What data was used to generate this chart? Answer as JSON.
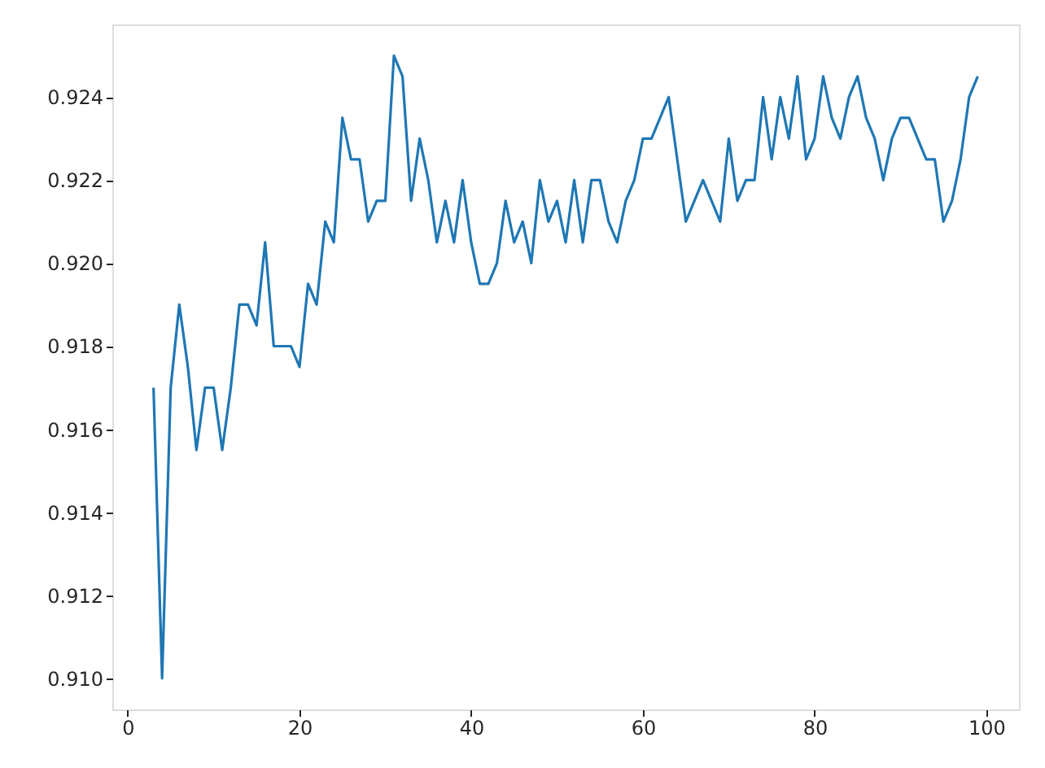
{
  "chart_data": {
    "type": "line",
    "x": [
      3,
      4,
      5,
      6,
      7,
      8,
      9,
      10,
      11,
      12,
      13,
      14,
      15,
      16,
      17,
      18,
      19,
      20,
      21,
      22,
      23,
      24,
      25,
      26,
      27,
      28,
      29,
      30,
      31,
      32,
      33,
      34,
      35,
      36,
      37,
      38,
      39,
      40,
      41,
      42,
      43,
      44,
      45,
      46,
      47,
      48,
      49,
      50,
      51,
      52,
      53,
      54,
      55,
      56,
      57,
      58,
      59,
      60,
      61,
      62,
      63,
      64,
      65,
      66,
      67,
      68,
      69,
      70,
      71,
      72,
      73,
      74,
      75,
      76,
      77,
      78,
      79,
      80,
      81,
      82,
      83,
      84,
      85,
      86,
      87,
      88,
      89,
      90,
      91,
      92,
      93,
      94,
      95,
      96,
      97,
      98,
      99
    ],
    "series": [
      {
        "color": "#1f77b4",
        "values": [
          0.917,
          0.91,
          0.917,
          0.919,
          0.9175,
          0.9155,
          0.917,
          0.917,
          0.9155,
          0.917,
          0.919,
          0.919,
          0.9185,
          0.9205,
          0.918,
          0.918,
          0.918,
          0.9175,
          0.9195,
          0.919,
          0.921,
          0.9205,
          0.9235,
          0.9225,
          0.9225,
          0.921,
          0.9215,
          0.9215,
          0.925,
          0.9245,
          0.9215,
          0.923,
          0.922,
          0.9205,
          0.9215,
          0.9205,
          0.922,
          0.9205,
          0.9195,
          0.9195,
          0.92,
          0.9215,
          0.9205,
          0.921,
          0.92,
          0.922,
          0.921,
          0.9215,
          0.9205,
          0.922,
          0.9205,
          0.922,
          0.922,
          0.921,
          0.9205,
          0.9215,
          0.922,
          0.923,
          0.923,
          0.9235,
          0.924,
          0.9225,
          0.921,
          0.9215,
          0.922,
          0.9215,
          0.921,
          0.923,
          0.9215,
          0.922,
          0.922,
          0.924,
          0.9225,
          0.924,
          0.923,
          0.9245,
          0.9225,
          0.923,
          0.9245,
          0.9235,
          0.923,
          0.924,
          0.9245,
          0.9235,
          0.923,
          0.922,
          0.923,
          0.9235,
          0.9235,
          0.923,
          0.9225,
          0.9225,
          0.921,
          0.9215,
          0.9225,
          0.924,
          0.9245
        ]
      }
    ],
    "xlim": [
      -1.8,
      103.8
    ],
    "ylim": [
      0.90925,
      0.92575
    ],
    "xticks": [
      0,
      20,
      40,
      60,
      80,
      100
    ],
    "yticks": [
      {
        "value": 0.91,
        "label": "0.910"
      },
      {
        "value": 0.912,
        "label": "0.912"
      },
      {
        "value": 0.914,
        "label": "0.914"
      },
      {
        "value": 0.916,
        "label": "0.916"
      },
      {
        "value": 0.918,
        "label": "0.918"
      },
      {
        "value": 0.92,
        "label": "0.920"
      },
      {
        "value": 0.922,
        "label": "0.922"
      },
      {
        "value": 0.924,
        "label": "0.924"
      }
    ],
    "marker": "none"
  }
}
